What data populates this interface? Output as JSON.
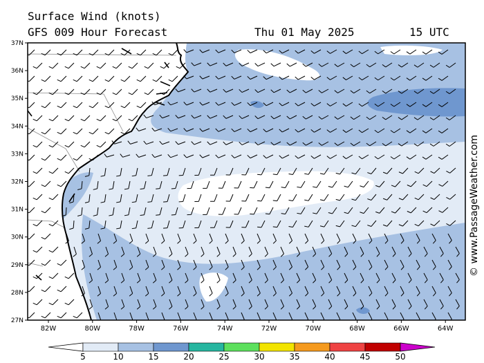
{
  "title": "Surface Wind (knots)",
  "forecast": "GFS 009 Hour Forecast",
  "date": "Thu 01 May 2025",
  "time": "15 UTC",
  "credit": "© www.PassageWeather.com",
  "lat_labels": [
    "37N",
    "36N",
    "35N",
    "34N",
    "33N",
    "32N",
    "31N",
    "30N",
    "29N",
    "28N",
    "27N"
  ],
  "lon_labels": [
    "82W",
    "80W",
    "78W",
    "76W",
    "74W",
    "72W",
    "70W",
    "68W",
    "66W",
    "64W"
  ],
  "colorbar": {
    "ticks": [
      "5",
      "10",
      "15",
      "20",
      "25",
      "30",
      "35",
      "40",
      "45",
      "50"
    ],
    "colors": [
      "#e2ebf6",
      "#a7c1e3",
      "#6f97cf",
      "#26b6a0",
      "#5de05d",
      "#f2e400",
      "#f59a1e",
      "#ef4343",
      "#c00000"
    ],
    "end_color": "#cc00cc"
  },
  "colors": {
    "land": "#ffffff",
    "calm": "#ffffff",
    "light": "#e2ebf6",
    "moderate": "#a7c1e3",
    "fresh": "#6f97cf"
  }
}
